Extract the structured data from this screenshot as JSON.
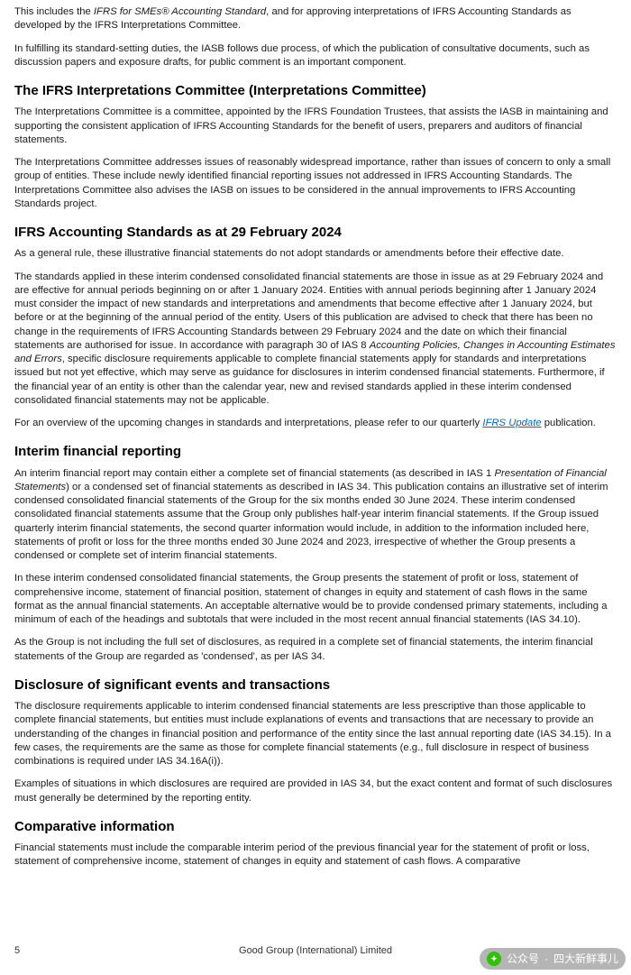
{
  "p1_pre": "This includes the ",
  "p1_em": "IFRS for SMEs® Accounting Standard",
  "p1_post": ", and for approving interpretations of IFRS Accounting Standards as developed by the IFRS Interpretations Committee.",
  "p2": "In fulfilling its standard-setting duties, the IASB follows due process, of which the publication of consultative documents, such as discussion papers and exposure drafts, for public comment is an important component.",
  "h1": "The IFRS Interpretations Committee (Interpretations Committee)",
  "p3": "The Interpretations Committee is a committee, appointed by the IFRS Foundation Trustees, that assists the IASB in maintaining and supporting the consistent application of IFRS Accounting Standards for the benefit of users, preparers and auditors of financial statements.",
  "p4": "The Interpretations Committee addresses issues of reasonably widespread importance, rather than issues of concern to only a small group of entities. These include newly identified financial reporting issues not addressed in IFRS Accounting Standards. The Interpretations Committee also advises the IASB on issues to be considered in the annual improvements to IFRS Accounting Standards project.",
  "h2": "IFRS Accounting Standards as at 29 February 2024",
  "p5": "As a general rule, these illustrative financial statements do not adopt standards or amendments before their effective date.",
  "p6_pre": "The standards applied in these interim condensed consolidated financial statements are those in issue as at 29 February 2024 and are effective for annual periods beginning on or after 1 January 2024. Entities with annual periods beginning after 1 January 2024 must consider the impact of new standards and interpretations and amendments that become effective after 1 January 2024, but before or at the beginning of the annual period of the entity. Users of this publication are advised to check that there has been no change in the requirements of IFRS Accounting Standards between 29 February 2024 and the date on which their financial statements are authorised for issue. In accordance with paragraph 30 of IAS 8 ",
  "p6_em": "Accounting Policies, Changes in Accounting Estimates and Errors",
  "p6_post": ", specific disclosure requirements applicable to complete financial statements apply for standards and interpretations issued but not yet effective, which may serve as guidance for disclosures in interim condensed financial statements. Furthermore, if the financial year of an entity is other than the calendar year, new and revised standards applied in these interim condensed consolidated financial statements may not be applicable.",
  "p7_pre": "For an overview of the upcoming changes in standards and interpretations, please refer to our quarterly ",
  "p7_link": "IFRS Update",
  "p7_post": " publication.",
  "h3": "Interim financial reporting",
  "p8_pre": "An interim financial report may contain either a complete set of financial statements (as described in IAS 1 ",
  "p8_em": "Presentation of Financial Statements",
  "p8_post": ") or a condensed set of financial statements as described in IAS 34. This publication contains an illustrative set of interim condensed consolidated financial statements of the Group for the six months ended 30 June 2024. These interim condensed consolidated financial statements assume that the Group only publishes half-year interim financial statements. If the Group issued quarterly interim financial statements, the second quarter information would include, in addition to the information included here, statements of profit or loss for the three months ended 30 June 2024 and 2023, irrespective of whether the Group presents a condensed or complete set of interim financial statements.",
  "p9": "In these interim condensed consolidated financial statements, the Group presents the statement of profit or loss, statement of comprehensive income, statement of financial position, statement of changes in equity and statement of cash flows in the same format as the annual financial statements. An acceptable alternative would be to provide condensed primary statements, including a minimum of each of the headings and subtotals that were included in the most recent annual financial statements (IAS 34.10).",
  "p10": "As the Group is not including the full set of disclosures, as required in a complete set of financial statements, the interim financial statements of the Group are regarded as 'condensed', as per IAS 34.",
  "h4": "Disclosure of significant events and transactions",
  "p11": "The disclosure requirements applicable to interim condensed financial statements are less prescriptive than those applicable to complete financial statements, but entities must include explanations of events and transactions that are necessary to provide an understanding of the changes in financial position and performance of the entity since the last annual reporting date (IAS 34.15). In a few cases, the requirements are the same as those for complete financial statements (e.g., full disclosure in respect of business combinations is required under IAS 34.16A(i)).",
  "p12": "Examples of situations in which disclosures are required are provided in IAS 34, but the exact content and format of such disclosures must generally be determined by the reporting entity.",
  "h5": "Comparative information",
  "p13": "Financial statements must include the comparable interim period of the previous financial year for the statement of profit or loss, statement of comprehensive income, statement of changes in equity and statement of cash flows. A comparative",
  "footer": {
    "pageNum": "5",
    "center": "Good Group (International) Limited"
  },
  "watermark": {
    "label": "公众号",
    "handle": "四大新鲜事儿"
  }
}
